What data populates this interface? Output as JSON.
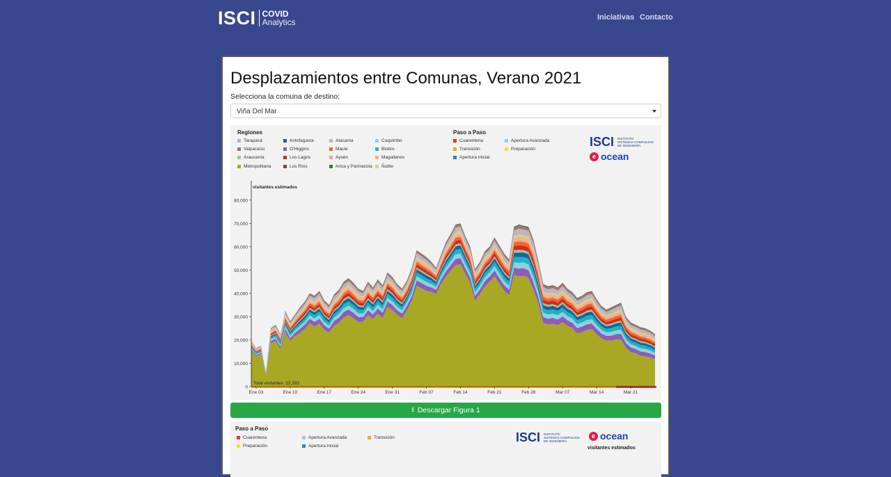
{
  "header": {
    "logo_main": "ISCI",
    "logo_line1": "COVID",
    "logo_line2": "Analytics",
    "nav": [
      {
        "label": "Iniciativas"
      },
      {
        "label": "Contacto"
      }
    ]
  },
  "page": {
    "title": "Desplazamientos entre Comunas, Verano 2021",
    "select_label": "Selecciona la comuna de destino:",
    "select_value": "Viña Del Mar",
    "download_label": "Descargar Figura 1"
  },
  "brand": {
    "isci": "ISCI",
    "isci_sub1": "INSTITUTO",
    "isci_sub2": "SISTEMAS COMPLEJOS",
    "isci_sub3": "DE INGENIERÍA",
    "ocean": "ocean"
  },
  "legend": {
    "regions_title": "Regiones",
    "regions": [
      {
        "name": "Tarapacá",
        "color": "#c7a6d3"
      },
      {
        "name": "Antofagasta",
        "color": "#1f5fa0"
      },
      {
        "name": "Atacama",
        "color": "#b8b8b8"
      },
      {
        "name": "Coquimbo",
        "color": "#8fd0e0"
      },
      {
        "name": "Valparaíso",
        "color": "#a0736c"
      },
      {
        "name": "O'Higgins",
        "color": "#8e5cb8"
      },
      {
        "name": "Maule",
        "color": "#f06a1c"
      },
      {
        "name": "Biobío",
        "color": "#1bb4c2"
      },
      {
        "name": "Araucanía",
        "color": "#90d088"
      },
      {
        "name": "Los Lagos",
        "color": "#d62728"
      },
      {
        "name": "Aysén",
        "color": "#f4a2a0"
      },
      {
        "name": "Magallanes",
        "color": "#f3b38a"
      },
      {
        "name": "Metropolitana",
        "color": "#a8a824"
      },
      {
        "name": "Los Ríos",
        "color": "#7a4a40"
      },
      {
        "name": "Arica y Parinacota",
        "color": "#2a8a2a"
      },
      {
        "name": "Ñuble",
        "color": "#d6d08a"
      }
    ],
    "paso_title": "Paso a Paso",
    "paso": [
      {
        "name": "Cuarentena",
        "color": "#e8334a"
      },
      {
        "name": "Apertura Avanzada",
        "color": "#9cc8ec"
      },
      {
        "name": "Transición",
        "color": "#f6a623"
      },
      {
        "name": "Preparación",
        "color": "#f5e02a"
      },
      {
        "name": "Apertura Inicial",
        "color": "#3a7cc2"
      }
    ]
  },
  "chart_data": {
    "type": "area",
    "ylabel": "visitantes estimados",
    "ylim": [
      0,
      85000
    ],
    "yticks": [
      0,
      10000,
      20000,
      30000,
      40000,
      50000,
      60000,
      70000,
      80000
    ],
    "xticks": [
      "Ene 03",
      "Ene 10",
      "Ene 17",
      "Ene 24",
      "Ene 31",
      "Feb 07",
      "Feb 14",
      "Feb 21",
      "Feb 28",
      "Mar 07",
      "Mar 14",
      "Mar 21"
    ],
    "total_label": "Total visitantes: 22,293",
    "start_day": 0,
    "totals": [
      19500,
      16500,
      17500,
      6000,
      25000,
      26500,
      22500,
      32500,
      28000,
      31000,
      34000,
      36500,
      40000,
      39000,
      41000,
      37000,
      35000,
      39500,
      41500,
      45000,
      46500,
      44500,
      42000,
      41000,
      45000,
      42500,
      46000,
      43500,
      49000,
      47000,
      44000,
      42000,
      45500,
      51000,
      58500,
      57000,
      55500,
      53500,
      51000,
      56500,
      62000,
      65500,
      69500,
      70000,
      64500,
      60000,
      50500,
      53500,
      58000,
      60000,
      64000,
      60500,
      57000,
      54500,
      68500,
      69500,
      69000,
      68500,
      63000,
      54000,
      44000,
      43000,
      43500,
      42500,
      44500,
      42000,
      40500,
      38000,
      39000,
      40500,
      41000,
      37500,
      34500,
      33000,
      34000,
      35000,
      36000,
      30000,
      27500,
      26500,
      25500,
      25000,
      24000,
      22500
    ],
    "metro_share": [
      0.78,
      0.78,
      0.8,
      0.82,
      0.74,
      0.74,
      0.72,
      0.72,
      0.7,
      0.7,
      0.68,
      0.68,
      0.68,
      0.66,
      0.66,
      0.66,
      0.66,
      0.66,
      0.66,
      0.66,
      0.66,
      0.66,
      0.66,
      0.68,
      0.68,
      0.68,
      0.68,
      0.68,
      0.7,
      0.7,
      0.7,
      0.7,
      0.72,
      0.72,
      0.74,
      0.74,
      0.74,
      0.76,
      0.78,
      0.78,
      0.76,
      0.76,
      0.75,
      0.75,
      0.75,
      0.74,
      0.73,
      0.74,
      0.74,
      0.75,
      0.74,
      0.73,
      0.72,
      0.72,
      0.7,
      0.68,
      0.69,
      0.68,
      0.66,
      0.66,
      0.62,
      0.62,
      0.62,
      0.62,
      0.62,
      0.62,
      0.62,
      0.6,
      0.6,
      0.6,
      0.6,
      0.6,
      0.6,
      0.6,
      0.58,
      0.58,
      0.56,
      0.56,
      0.54,
      0.54,
      0.52,
      0.52,
      0.52,
      0.52
    ],
    "series_shares": [
      {
        "name": "Metropolitana",
        "share": 0,
        "color": "#a8a824"
      },
      {
        "name": "O'Higgins",
        "share": 0.06,
        "color": "#8e5cb8"
      },
      {
        "name": "Coquimbo",
        "share": 0.045,
        "color": "#8fd0e0"
      },
      {
        "name": "Biobío",
        "share": 0.045,
        "color": "#1bb4c2"
      },
      {
        "name": "Antofagasta",
        "share": 0.035,
        "color": "#1f5fa0"
      },
      {
        "name": "Araucanía",
        "share": 0.02,
        "color": "#90d088"
      },
      {
        "name": "Los Lagos",
        "share": 0.035,
        "color": "#d62728"
      },
      {
        "name": "Maule",
        "share": 0.03,
        "color": "#f06a1c"
      },
      {
        "name": "Aysén",
        "share": 0.015,
        "color": "#f4a2a0"
      },
      {
        "name": "Magallanes",
        "share": 0.02,
        "color": "#f3b38a"
      },
      {
        "name": "Ñuble",
        "share": 0.02,
        "color": "#d6d08a"
      },
      {
        "name": "Atacama",
        "share": 0.03,
        "color": "#b8b8b8"
      },
      {
        "name": "Tarapacá",
        "share": 0.015,
        "color": "#c7a6d3"
      },
      {
        "name": "Valparaíso",
        "share": 0.02,
        "color": "#a0736c"
      },
      {
        "name": "Arica y Parinacota",
        "share": 0.005,
        "color": "#2a8a2a"
      },
      {
        "name": "Los Ríos",
        "share": 0.005,
        "color": "#7a4a40"
      }
    ],
    "phase_bar": [
      {
        "from": 0,
        "to": 75,
        "color": "#f6a623"
      },
      {
        "from": 75,
        "to": 83,
        "color": "#e8334a"
      }
    ]
  }
}
